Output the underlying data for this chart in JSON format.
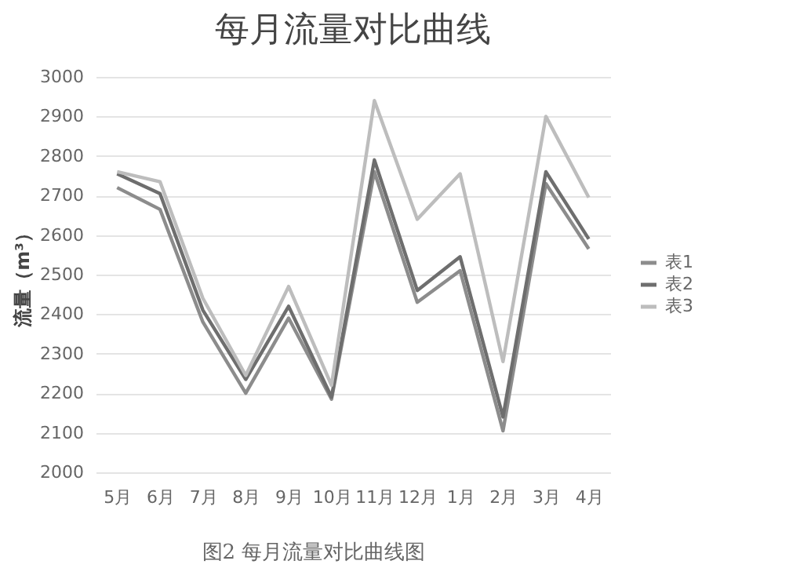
{
  "chart_data": {
    "type": "line",
    "title": "每月流量对比曲线",
    "ylabel": "流量（m³）",
    "categories": [
      "5月",
      "6月",
      "7月",
      "8月",
      "9月",
      "10月",
      "11月",
      "12月",
      "1月",
      "2月",
      "3月",
      "4月"
    ],
    "series": [
      {
        "name": "表1",
        "color": "#8c8c8c",
        "values": [
          2720,
          2665,
          2380,
          2200,
          2390,
          2185,
          2760,
          2430,
          2510,
          2105,
          2730,
          2565
        ]
      },
      {
        "name": "表2",
        "color": "#6e6e6e",
        "values": [
          2755,
          2705,
          2410,
          2235,
          2420,
          2190,
          2790,
          2460,
          2545,
          2140,
          2760,
          2590
        ]
      },
      {
        "name": "表3",
        "color": "#bdbdbd",
        "values": [
          2760,
          2735,
          2440,
          2245,
          2470,
          2220,
          2940,
          2640,
          2755,
          2280,
          2900,
          2695
        ]
      }
    ],
    "ylim": [
      2000,
      3000
    ],
    "yticks": [
      2000,
      2100,
      2200,
      2300,
      2400,
      2500,
      2600,
      2700,
      2800,
      2900,
      3000
    ],
    "grid": "y",
    "legend": "right",
    "marker": "none",
    "line_style": "solid",
    "annotations": [
      "图2 每月流量对比曲线图"
    ]
  }
}
